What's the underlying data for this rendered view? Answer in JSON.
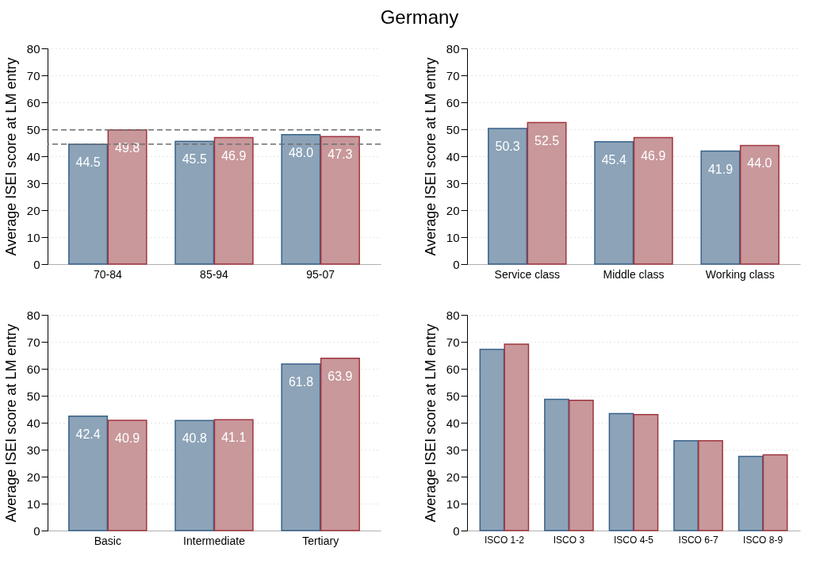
{
  "chart_data": [
    {
      "type": "bar",
      "title": "Germany",
      "ylabel": "Average ISEI score at LM entry",
      "categories": [
        "70-84",
        "85-94",
        "95-07"
      ],
      "ylim": [
        0,
        80
      ],
      "yticks": [
        0,
        10,
        20,
        30,
        40,
        50,
        60,
        70,
        80
      ],
      "grid": "y",
      "series": [
        {
          "color": "#8ca3b8",
          "values": [
            44.5,
            45.5,
            48.0
          ],
          "value_labels": [
            "44.5",
            "45.5",
            "48.0"
          ]
        },
        {
          "color": "#c8989b",
          "values": [
            49.8,
            46.9,
            47.3
          ],
          "value_labels": [
            "49.8",
            "46.9",
            "47.3"
          ]
        }
      ],
      "ref_lines": [
        {
          "axis": "y",
          "value": 49.8,
          "line_style": "dashed",
          "color": "#6e6e6e"
        },
        {
          "axis": "y",
          "value": 44.5,
          "line_style": "dashed",
          "color": "#6e6e6e"
        }
      ]
    },
    {
      "type": "bar",
      "ylabel": "Average ISEI score at LM entry",
      "categories": [
        "Service class",
        "Middle class",
        "Working class"
      ],
      "ylim": [
        0,
        80
      ],
      "yticks": [
        0,
        10,
        20,
        30,
        40,
        50,
        60,
        70,
        80
      ],
      "grid": "y",
      "series": [
        {
          "color": "#8ca3b8",
          "values": [
            50.3,
            45.4,
            41.9
          ],
          "value_labels": [
            "50.3",
            "45.4",
            "41.9"
          ]
        },
        {
          "color": "#c8989b",
          "values": [
            52.5,
            46.9,
            44.0
          ],
          "value_labels": [
            "52.5",
            "46.9",
            "44.0"
          ]
        }
      ]
    },
    {
      "type": "bar",
      "ylabel": "Average ISEI score at LM entry",
      "categories": [
        "Basic",
        "Intermediate",
        "Tertiary"
      ],
      "ylim": [
        0,
        80
      ],
      "yticks": [
        0,
        10,
        20,
        30,
        40,
        50,
        60,
        70,
        80
      ],
      "grid": "y",
      "series": [
        {
          "color": "#8ca3b8",
          "values": [
            42.4,
            40.8,
            61.8
          ],
          "value_labels": [
            "42.4",
            "40.8",
            "61.8"
          ]
        },
        {
          "color": "#c8989b",
          "values": [
            40.9,
            41.1,
            63.9
          ],
          "value_labels": [
            "40.9",
            "41.1",
            "63.9"
          ]
        }
      ]
    },
    {
      "type": "bar",
      "ylabel": "Average ISEI score at LM entry",
      "categories": [
        "ISCO 1-2",
        "ISCO 3",
        "ISCO 4-5",
        "ISCO 6-7",
        "ISCO 8-9"
      ],
      "ylim": [
        0,
        80
      ],
      "yticks": [
        0,
        10,
        20,
        30,
        40,
        50,
        60,
        70,
        80
      ],
      "grid": "y",
      "series": [
        {
          "color": "#8ca3b8",
          "values": [
            67.2,
            48.7,
            43.4,
            33.3,
            27.5
          ]
        },
        {
          "color": "#c8989b",
          "values": [
            69.1,
            48.3,
            43.0,
            33.3,
            28.1
          ]
        }
      ]
    }
  ]
}
